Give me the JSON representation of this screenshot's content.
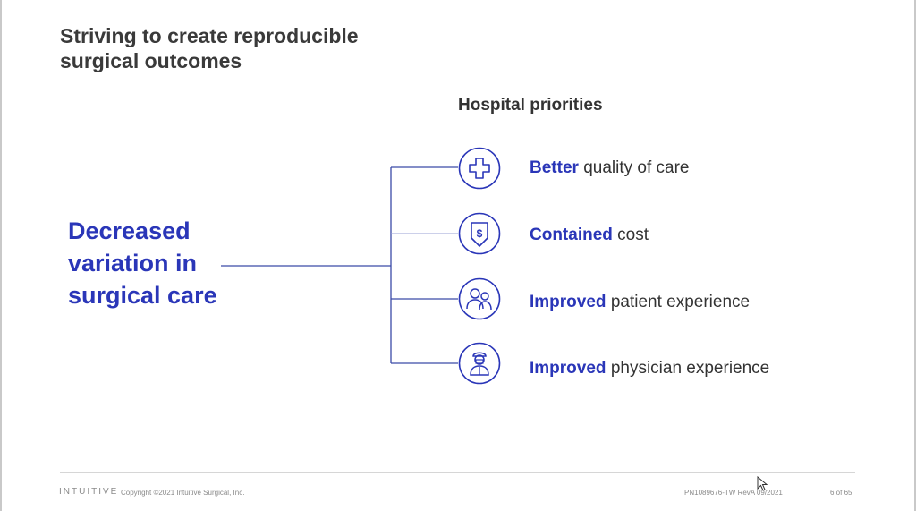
{
  "slide": {
    "title": "Striving to create reproducible surgical outcomes",
    "main_statement": "Decreased variation in surgical care",
    "priorities_heading": "Hospital priorities",
    "priorities": [
      {
        "bold": "Better",
        "rest": "quality of care",
        "icon": "medical-cross-icon"
      },
      {
        "bold": "Contained",
        "rest": "cost",
        "icon": "cost-down-icon"
      },
      {
        "bold": "Improved",
        "rest": "patient experience",
        "icon": "patient-icon"
      },
      {
        "bold": "Improved",
        "rest": "physician experience",
        "icon": "physician-icon"
      }
    ]
  },
  "footer": {
    "logo": "INTUITIVE",
    "copyright": "Copyright ©2021 Intuitive Surgical, Inc.",
    "part_number": "PN1089676-TW RevA 09/2021",
    "page": "6 of 65"
  },
  "colors": {
    "accent": "#2a36b8",
    "text": "#333333",
    "connector": "#3b4aa8"
  }
}
